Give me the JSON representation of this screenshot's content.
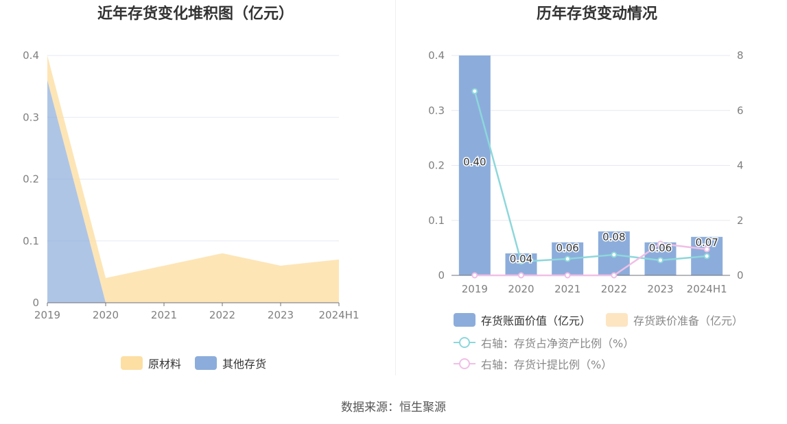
{
  "left": {
    "title": "近年存货变化堆积图（亿元）",
    "legend": [
      {
        "label": "原材料",
        "color": "#fddfa4"
      },
      {
        "label": "其他存货",
        "color": "#8caddb"
      }
    ]
  },
  "right": {
    "title": "历年存货变动情况",
    "legend": [
      {
        "label": "存货账面价值（亿元）",
        "color": "#8caddb"
      },
      {
        "label": "存货跌价准备（亿元）",
        "color": "#fde5c2"
      },
      {
        "label": "右轴：存货占净资产比例（%）",
        "color": "#8dd7db"
      },
      {
        "label": "右轴：存货计提比例（%）",
        "color": "#f0bfe6"
      }
    ]
  },
  "source": "数据来源：恒生聚源",
  "chart_data": [
    {
      "type": "area",
      "title": "近年存货变化堆积图（亿元）",
      "categories": [
        "2019",
        "2020",
        "2021",
        "2022",
        "2023",
        "2024H1"
      ],
      "ylim": [
        0,
        0.4
      ],
      "yticks": [
        "0",
        "0.1",
        "0.2",
        "0.3",
        "0.4"
      ],
      "stacked": true,
      "series": [
        {
          "name": "其他存货",
          "color": "#8caddb",
          "values": [
            0.36,
            0.0,
            0.0,
            0.0,
            0.0,
            0.0
          ]
        },
        {
          "name": "原材料",
          "color": "#fddfa4",
          "values": [
            0.04,
            0.04,
            0.06,
            0.08,
            0.06,
            0.07
          ]
        }
      ],
      "legend_position": "bottom",
      "grid": true
    },
    {
      "type": "bar",
      "title": "历年存货变动情况",
      "categories": [
        "2019",
        "2020",
        "2021",
        "2022",
        "2023",
        "2024H1"
      ],
      "ylim": [
        0,
        0.4
      ],
      "yticks": [
        "0",
        "0.1",
        "0.2",
        "0.3",
        "0.4"
      ],
      "y2lim": [
        0,
        8
      ],
      "y2ticks": [
        "0",
        "2",
        "4",
        "6",
        "8"
      ],
      "series": [
        {
          "name": "存货账面价值（亿元）",
          "type": "bar",
          "color": "#8caddb",
          "values": [
            0.4,
            0.04,
            0.06,
            0.08,
            0.06,
            0.07
          ],
          "labels": [
            "0.40",
            "0.04",
            "0.06",
            "0.08",
            "0.06",
            "0.07"
          ]
        },
        {
          "name": "存货跌价准备（亿元）",
          "type": "bar",
          "color": "#fde5c2",
          "values": [
            0,
            0,
            0,
            0,
            0,
            0
          ]
        },
        {
          "name": "右轴：存货占净资产比例（%）",
          "type": "line",
          "axis": "right",
          "color": "#8dd7db",
          "values": [
            6.7,
            0.5,
            0.6,
            0.75,
            0.55,
            0.7
          ]
        },
        {
          "name": "右轴：存货计提比例（%）",
          "type": "line",
          "axis": "right",
          "color": "#f0bfe6",
          "values": [
            0,
            0,
            0,
            0,
            1.15,
            0.95
          ]
        }
      ],
      "legend_position": "bottom",
      "grid": true
    }
  ]
}
